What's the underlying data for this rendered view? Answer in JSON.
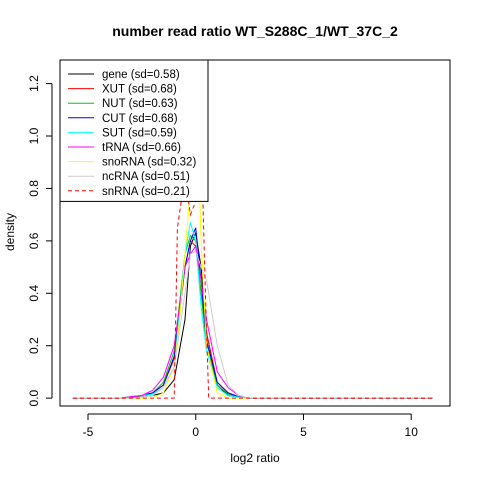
{
  "chart_data": {
    "type": "line",
    "title": "number read ratio WT_S288C_1/WT_37C_2",
    "xlabel": "log2 ratio",
    "ylabel": "density",
    "xlim": [
      -6.3,
      11.8
    ],
    "ylim": [
      -0.03,
      1.29
    ],
    "x_ticks": [
      -5,
      0,
      5,
      10
    ],
    "x_tick_labels": [
      "-5",
      "0",
      "5",
      "10"
    ],
    "y_ticks": [
      0.0,
      0.2,
      0.4,
      0.6,
      0.8,
      1.0,
      1.2
    ],
    "y_tick_labels": [
      "0.0",
      "0.2",
      "0.4",
      "0.6",
      "0.8",
      "1.0",
      "1.2"
    ],
    "grid": false,
    "legend_position": "top-left",
    "series": [
      {
        "name": "gene (sd=0.58)",
        "color": "#000000",
        "dash": "solid",
        "x": [
          -5.7,
          -3.5,
          -2.5,
          -2.0,
          -1.5,
          -1.0,
          -0.5,
          -0.25,
          0.0,
          0.25,
          0.5,
          1.0,
          1.5,
          2.0,
          2.5,
          11.0
        ],
        "y": [
          0,
          0,
          0.005,
          0.01,
          0.02,
          0.07,
          0.3,
          0.58,
          0.63,
          0.5,
          0.25,
          0.05,
          0.01,
          0.004,
          0,
          0
        ]
      },
      {
        "name": "XUT (sd=0.68)",
        "color": "#ff0000",
        "dash": "solid",
        "x": [
          -5.7,
          -3.5,
          -2.5,
          -2.0,
          -1.5,
          -1.0,
          -0.5,
          -0.25,
          0.0,
          0.25,
          0.5,
          1.0,
          1.5,
          2.0,
          2.5,
          11.0
        ],
        "y": [
          0,
          0,
          0.01,
          0.02,
          0.05,
          0.15,
          0.5,
          0.6,
          0.58,
          0.4,
          0.25,
          0.06,
          0.02,
          0.005,
          0,
          0
        ]
      },
      {
        "name": "NUT (sd=0.63)",
        "color": "#00cc00",
        "dash": "solid",
        "x": [
          -5.7,
          -3.5,
          -2.5,
          -2.0,
          -1.5,
          -1.0,
          -0.5,
          -0.25,
          0.0,
          0.25,
          0.5,
          1.0,
          1.5,
          2.0,
          2.5,
          11.0
        ],
        "y": [
          0,
          0,
          0.01,
          0.02,
          0.06,
          0.18,
          0.55,
          0.62,
          0.6,
          0.4,
          0.2,
          0.05,
          0.015,
          0.005,
          0,
          0
        ]
      },
      {
        "name": "CUT (sd=0.68)",
        "color": "#0000ff",
        "dash": "solid",
        "x": [
          -5.7,
          -3.5,
          -2.5,
          -2.0,
          -1.5,
          -1.0,
          -0.5,
          -0.25,
          0.0,
          0.25,
          0.5,
          1.0,
          1.5,
          2.0,
          2.5,
          11.0
        ],
        "y": [
          0,
          0,
          0.01,
          0.02,
          0.05,
          0.16,
          0.5,
          0.6,
          0.65,
          0.45,
          0.22,
          0.06,
          0.02,
          0.005,
          0,
          0
        ]
      },
      {
        "name": "SUT (sd=0.59)",
        "color": "#00ffff",
        "dash": "solid",
        "x": [
          -5.7,
          -3.5,
          -2.5,
          -2.0,
          -1.5,
          -1.0,
          -0.5,
          -0.25,
          0.0,
          0.25,
          0.5,
          1.0,
          1.5,
          2.0,
          2.5,
          11.0
        ],
        "y": [
          0,
          0,
          0.01,
          0.015,
          0.04,
          0.12,
          0.55,
          0.67,
          0.6,
          0.35,
          0.18,
          0.04,
          0.01,
          0.004,
          0,
          0
        ]
      },
      {
        "name": "tRNA (sd=0.66)",
        "color": "#ff00ff",
        "dash": "solid",
        "x": [
          -5.7,
          -3.5,
          -2.5,
          -2.0,
          -1.5,
          -1.0,
          -0.5,
          -0.25,
          0.0,
          0.25,
          0.5,
          1.0,
          1.5,
          2.0,
          2.5,
          11.0
        ],
        "y": [
          0,
          0,
          0.01,
          0.03,
          0.08,
          0.2,
          0.5,
          0.55,
          0.58,
          0.45,
          0.3,
          0.1,
          0.04,
          0.01,
          0,
          0
        ]
      },
      {
        "name": "snoRNA (sd=0.32)",
        "color": "#ffff00",
        "dash": "solid",
        "x": [
          -5.7,
          -2.0,
          -1.5,
          -1.0,
          -0.75,
          -0.5,
          -0.25,
          -0.1,
          0.0,
          0.1,
          0.25,
          0.5,
          1.0,
          1.5,
          11.0
        ],
        "y": [
          0,
          0,
          0.02,
          0.12,
          0.3,
          0.55,
          0.8,
          1.1,
          1.25,
          1.0,
          0.6,
          0.2,
          0.02,
          0,
          0
        ]
      },
      {
        "name": "ncRNA (sd=0.51)",
        "color": "#cccccc",
        "dash": "solid",
        "x": [
          -5.7,
          -3.0,
          -2.0,
          -1.5,
          -1.0,
          -0.5,
          -0.25,
          0.0,
          0.25,
          0.5,
          1.0,
          1.5,
          2.0,
          2.5,
          11.0
        ],
        "y": [
          0,
          0,
          0.01,
          0.04,
          0.12,
          0.4,
          0.55,
          0.56,
          0.5,
          0.45,
          0.2,
          0.05,
          0.01,
          0,
          0
        ]
      },
      {
        "name": "snRNA (sd=0.21)",
        "color": "#ff0000",
        "dash": "dashed",
        "x": [
          -5.7,
          -1.2,
          -1.0,
          -0.85,
          -0.5,
          -0.25,
          0.0,
          0.15,
          0.3,
          0.45,
          0.6,
          0.75,
          11.0
        ],
        "y": [
          0,
          0,
          0.0,
          0.65,
          0.85,
          0.7,
          0.75,
          1.05,
          0.85,
          0.4,
          0.0,
          0,
          0
        ]
      }
    ]
  }
}
